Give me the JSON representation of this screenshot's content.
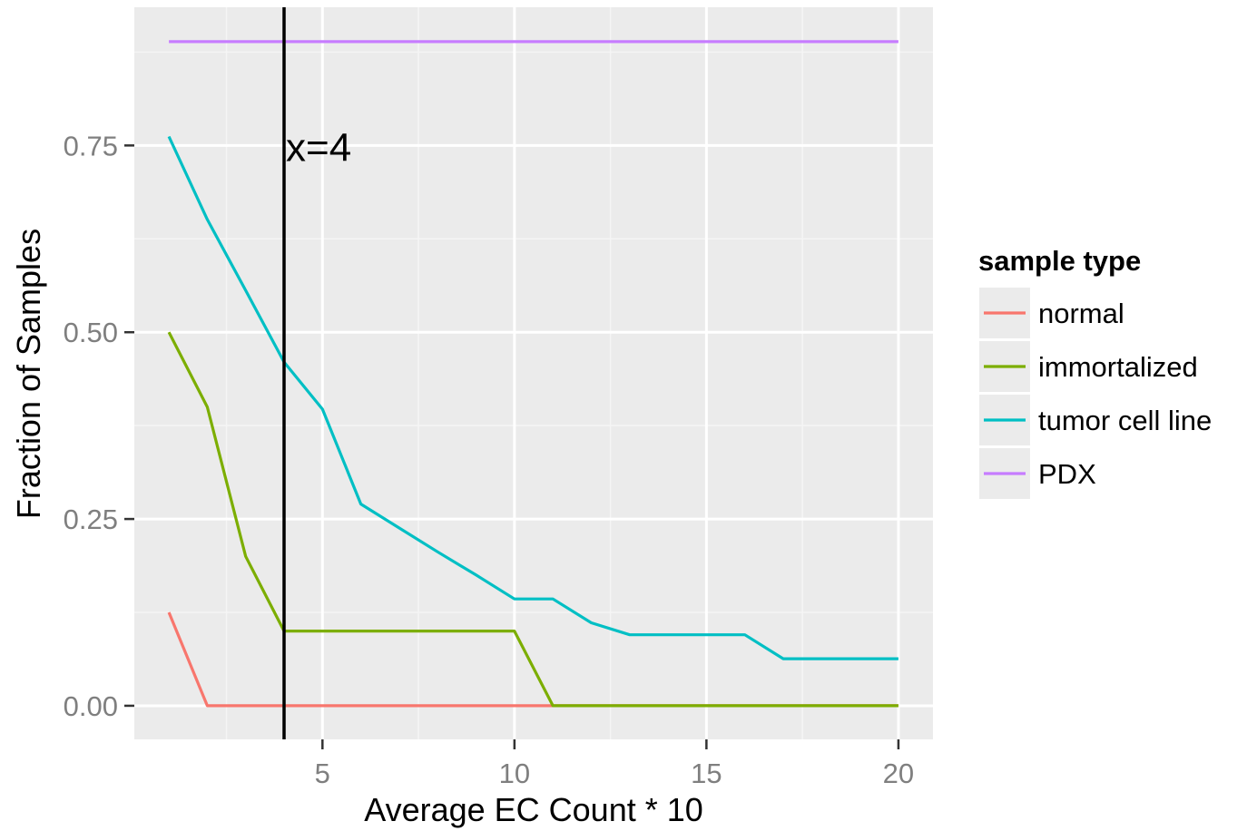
{
  "chart_data": {
    "type": "line",
    "xlabel": "Average EC Count * 10",
    "ylabel": "Fraction of Samples",
    "xlim": [
      0.1,
      20.9
    ],
    "ylim": [
      -0.045,
      0.935
    ],
    "x_ticks": [
      5,
      10,
      15,
      20
    ],
    "x_tick_labels": [
      "5",
      "10",
      "15",
      "20"
    ],
    "y_ticks": [
      0,
      0.25,
      0.5,
      0.75
    ],
    "y_tick_labels": [
      "0.00",
      "0.25",
      "0.50",
      "0.75"
    ],
    "grid": true,
    "background": "#ebebeb",
    "legend": {
      "title": "sample type",
      "position": "right"
    },
    "vline": {
      "x": 4,
      "label": "x=4",
      "color": "#000000"
    },
    "series": [
      {
        "name": "normal",
        "color": "#f8766d",
        "x": [
          1,
          2,
          3,
          4,
          5,
          6,
          7,
          8,
          9,
          10,
          11,
          12,
          13,
          14,
          15,
          16,
          17,
          18,
          19,
          20
        ],
        "y": [
          0.125,
          0,
          0,
          0,
          0,
          0,
          0,
          0,
          0,
          0,
          0,
          0,
          0,
          0,
          0,
          0,
          0,
          0,
          0,
          0
        ]
      },
      {
        "name": "immortalized",
        "color": "#7cae00",
        "x": [
          1,
          2,
          3,
          4,
          5,
          6,
          7,
          8,
          9,
          10,
          11,
          12,
          13,
          14,
          15,
          16,
          17,
          18,
          19,
          20
        ],
        "y": [
          0.5,
          0.4,
          0.2,
          0.1,
          0.1,
          0.1,
          0.1,
          0.1,
          0.1,
          0.1,
          0,
          0,
          0,
          0,
          0,
          0,
          0,
          0,
          0,
          0
        ]
      },
      {
        "name": "tumor cell line",
        "color": "#00bfc4",
        "x": [
          1,
          2,
          3,
          4,
          5,
          6,
          7,
          8,
          9,
          10,
          11,
          12,
          13,
          14,
          15,
          16,
          17,
          18,
          19,
          20
        ],
        "y": [
          0.762,
          0.651,
          0.556,
          0.46,
          0.397,
          0.27,
          0.238,
          0.206,
          0.175,
          0.143,
          0.143,
          0.111,
          0.095,
          0.095,
          0.095,
          0.095,
          0.063,
          0.063,
          0.063,
          0.063
        ]
      },
      {
        "name": "PDX",
        "color": "#c77cff",
        "x": [
          1,
          2,
          3,
          4,
          5,
          6,
          7,
          8,
          9,
          10,
          11,
          12,
          13,
          14,
          15,
          16,
          17,
          18,
          19,
          20
        ],
        "y": [
          0.889,
          0.889,
          0.889,
          0.889,
          0.889,
          0.889,
          0.889,
          0.889,
          0.889,
          0.889,
          0.889,
          0.889,
          0.889,
          0.889,
          0.889,
          0.889,
          0.889,
          0.889,
          0.889,
          0.889
        ]
      }
    ]
  }
}
